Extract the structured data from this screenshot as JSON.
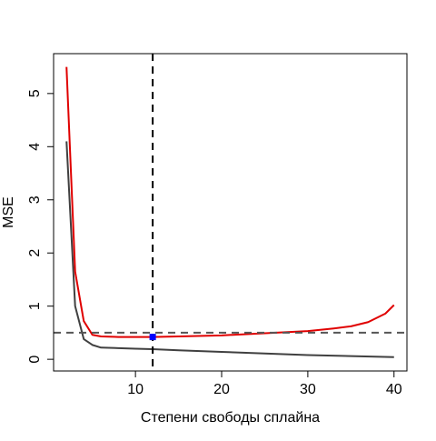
{
  "chart_data": {
    "type": "line",
    "title": "",
    "xlabel": "Степени свободы сплайна",
    "ylabel": "MSE",
    "xlim": [
      0.5,
      41.5
    ],
    "ylim": [
      -0.22,
      5.75
    ],
    "x_ticks": [
      10,
      20,
      30,
      40
    ],
    "y_ticks": [
      0,
      1,
      2,
      3,
      4,
      5
    ],
    "grid": false,
    "legend": "none",
    "series": [
      {
        "color": "#404040",
        "x": [
          2,
          3,
          4,
          5,
          6,
          8,
          10,
          12,
          15,
          20,
          25,
          30,
          35,
          40
        ],
        "values": [
          4.1,
          1.0,
          0.38,
          0.27,
          0.22,
          0.21,
          0.2,
          0.19,
          0.17,
          0.14,
          0.11,
          0.08,
          0.06,
          0.04
        ]
      },
      {
        "color": "#e00000",
        "x": [
          2,
          3,
          4,
          5,
          6,
          8,
          10,
          12,
          15,
          20,
          25,
          30,
          33,
          35,
          37,
          39,
          40
        ],
        "values": [
          5.5,
          1.65,
          0.72,
          0.46,
          0.43,
          0.42,
          0.42,
          0.42,
          0.43,
          0.45,
          0.49,
          0.53,
          0.58,
          0.62,
          0.7,
          0.86,
          1.02
        ]
      }
    ],
    "reference_lines": {
      "vertical_x": 12,
      "horizontal_y": 0.5,
      "vertical_color": "#000000",
      "horizontal_color": "#555555"
    },
    "marker": {
      "x": 12,
      "y": 0.42,
      "color": "#0000ff"
    }
  }
}
